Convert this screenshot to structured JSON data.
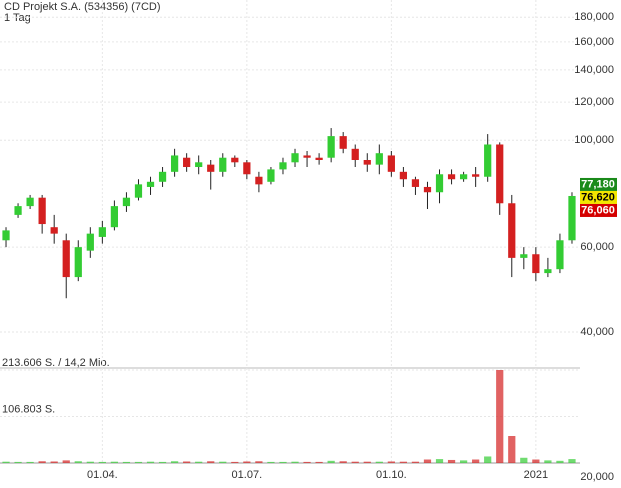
{
  "chart_data": {
    "type": "candlestick",
    "title": "CD Projekt S.A. (534356) (7CD)",
    "subtitle": "1 Tag",
    "categories": [
      null,
      null,
      null,
      null,
      null,
      null,
      null,
      null,
      "01.04.",
      null,
      null,
      null,
      null,
      null,
      null,
      null,
      null,
      null,
      null,
      null,
      "01.07.",
      null,
      null,
      null,
      null,
      null,
      null,
      null,
      null,
      null,
      null,
      null,
      "01.10.",
      null,
      null,
      null,
      null,
      null,
      null,
      null,
      null,
      null,
      null,
      null,
      "2021",
      null,
      null,
      null
    ],
    "open": [
      62000,
      70000,
      73000,
      76000,
      66000,
      62000,
      52000,
      59000,
      63000,
      66000,
      73000,
      76000,
      80000,
      82000,
      86000,
      92000,
      88000,
      89000,
      86000,
      92000,
      90000,
      84000,
      82000,
      87000,
      90000,
      93000,
      92000,
      92000,
      102000,
      96000,
      91000,
      89000,
      93000,
      86000,
      83000,
      80000,
      78000,
      85000,
      83000,
      85000,
      84000,
      98000,
      74000,
      57000,
      58000,
      53000,
      54000,
      62000
    ],
    "high": [
      66000,
      74000,
      77000,
      77000,
      70000,
      64000,
      62000,
      66000,
      68000,
      75000,
      78000,
      83000,
      84000,
      88000,
      96000,
      94000,
      93000,
      91000,
      94000,
      93000,
      91000,
      86000,
      88000,
      92000,
      96000,
      95000,
      94000,
      106000,
      104000,
      98000,
      94000,
      98000,
      95000,
      88000,
      84000,
      82000,
      87000,
      87000,
      86000,
      88000,
      103000,
      99000,
      77000,
      60000,
      60000,
      57000,
      64000,
      78000
    ],
    "low": [
      60000,
      69000,
      72000,
      64000,
      61000,
      47000,
      51000,
      57000,
      61000,
      65000,
      71000,
      75000,
      77000,
      80000,
      84000,
      86000,
      85000,
      79000,
      84000,
      88000,
      83000,
      78000,
      81000,
      85000,
      88000,
      88000,
      89000,
      90000,
      94000,
      88000,
      86000,
      85000,
      84000,
      80000,
      77000,
      72000,
      74000,
      81000,
      82000,
      80000,
      82000,
      70000,
      52000,
      54000,
      51000,
      52000,
      53000,
      61000
    ],
    "close": [
      65000,
      73000,
      76000,
      67000,
      64000,
      52000,
      60000,
      64000,
      66000,
      73000,
      76000,
      81000,
      82000,
      86000,
      93000,
      88000,
      90000,
      86000,
      92000,
      90000,
      85000,
      81000,
      87000,
      90000,
      94000,
      92000,
      91000,
      102000,
      96000,
      91000,
      89000,
      94000,
      86000,
      83000,
      80000,
      78000,
      85000,
      83000,
      85000,
      84000,
      98000,
      74000,
      57000,
      58000,
      53000,
      54000,
      62000,
      76620
    ],
    "volume": [
      3000,
      2500,
      2500,
      4000,
      3500,
      6000,
      4000,
      3000,
      2500,
      3000,
      2500,
      2500,
      3000,
      2500,
      4000,
      3500,
      3000,
      4000,
      3000,
      2500,
      3500,
      4000,
      2500,
      2500,
      3000,
      2500,
      2500,
      5000,
      4000,
      3000,
      3000,
      3000,
      3500,
      3000,
      3000,
      8000,
      9000,
      7000,
      6000,
      8000,
      15000,
      213606,
      62000,
      12000,
      8000,
      6000,
      5000,
      9000
    ],
    "ylim": [
      20000,
      195500
    ],
    "log_scale": true,
    "yticks": [
      {
        "value": 20000,
        "label": "20,000"
      },
      {
        "value": 40000,
        "label": "40,000"
      },
      {
        "value": 60000,
        "label": "60,000"
      },
      {
        "value": 100000,
        "label": "100,000"
      },
      {
        "value": 120000,
        "label": "120,000"
      },
      {
        "value": 140000,
        "label": "140,000"
      },
      {
        "value": 160000,
        "label": "160,000"
      },
      {
        "value": 180000,
        "label": "180,000"
      }
    ],
    "volume_lim": [
      0,
      213606
    ],
    "volume_ticks": [
      {
        "value": 213606,
        "label": "213.606 S. / 14,2 Mio."
      },
      {
        "value": 106803,
        "label": "106.803 S."
      }
    ],
    "price_labels": [
      {
        "value": 77180,
        "label": "77,180",
        "color": "#1a8a1a"
      },
      {
        "value": 76620,
        "label": "76,620",
        "color": "#f2e600"
      },
      {
        "value": 76060,
        "label": "76,060",
        "color": "#d40000"
      }
    ],
    "up_color": "#33cc33",
    "down_color": "#d42020",
    "grid": true
  }
}
